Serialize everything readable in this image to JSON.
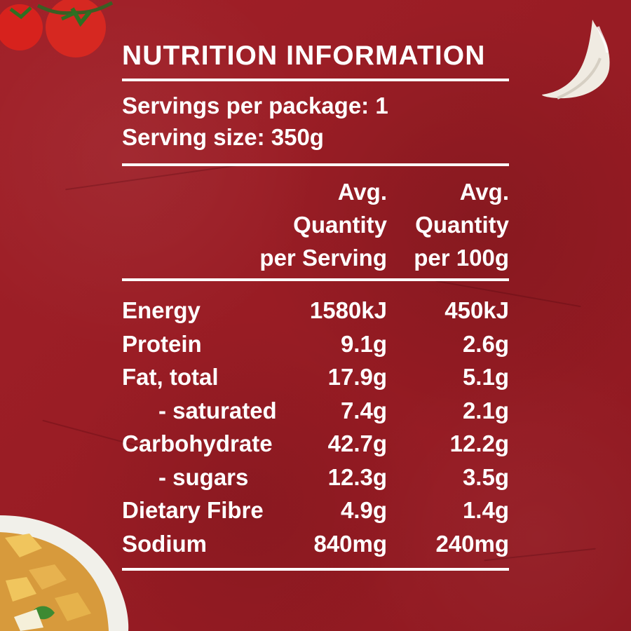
{
  "panel": {
    "title": "NUTRITION INFORMATION",
    "servings_per_package": "Servings per package: 1",
    "serving_size": "Serving size: 350g",
    "column_headers": {
      "per_serving": [
        "Avg.",
        "Quantity",
        "per Serving"
      ],
      "per_100g": [
        "Avg.",
        "Quantity",
        "per 100g"
      ]
    },
    "rows": [
      {
        "name": "Energy",
        "per_serving": "1580kJ",
        "per_100g": "450kJ"
      },
      {
        "name": "Protein",
        "per_serving": "9.1g",
        "per_100g": "2.6g"
      },
      {
        "name": "Fat, total",
        "per_serving": "17.9g",
        "per_100g": "5.1g"
      },
      {
        "name": "- saturated",
        "per_serving": "7.4g",
        "per_100g": "2.1g"
      },
      {
        "name": "Carbohydrate",
        "per_serving": "42.7g",
        "per_100g": "12.2g"
      },
      {
        "name": "- sugars",
        "per_serving": "12.3g",
        "per_100g": "3.5g"
      },
      {
        "name": "Dietary Fibre",
        "per_serving": "4.9g",
        "per_100g": "1.4g"
      },
      {
        "name": "Sodium",
        "per_serving": "840mg",
        "per_100g": "240mg"
      }
    ]
  },
  "decorations": {
    "top_left": "tomato-icon",
    "top_right": "garlic-icon",
    "bottom_left": "pasta-bowl-icon"
  },
  "colors": {
    "background": "#9b1b24",
    "text": "#ffffff",
    "tomato": "#d8201d",
    "garlic": "#f2ede4"
  }
}
